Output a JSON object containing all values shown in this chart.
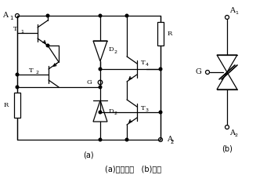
{
  "bg_color": "#ffffff",
  "line_color": "#000000",
  "fig_width": 3.41,
  "fig_height": 2.23,
  "dpi": 100,
  "caption": "(a)等效电路   (b)符号",
  "label_a": "(a)",
  "label_b": "(b)"
}
